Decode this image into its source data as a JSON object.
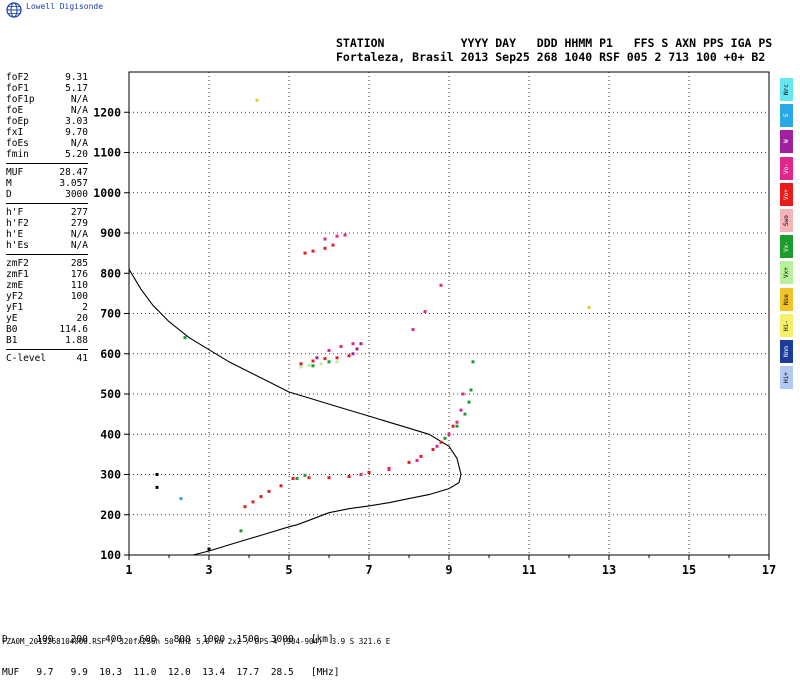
{
  "brand": "Lowell Digisonde",
  "header": {
    "line1": "STATION           YYYY DAY   DDD HHMM P1   FFS S AXN PPS IGA PS",
    "line2": "Fortaleza, Brasil 2013 Sep25 268 1040 RSF 005 2 713 100 +0+ B2"
  },
  "parameters": [
    [
      {
        "name": "foF2",
        "value": "9.31"
      },
      {
        "name": "foF1",
        "value": "5.17"
      },
      {
        "name": "foF1p",
        "value": "N/A"
      },
      {
        "name": "foE",
        "value": "N/A"
      },
      {
        "name": "foEp",
        "value": "3.03"
      },
      {
        "name": "fxI",
        "value": "9.70"
      },
      {
        "name": "foEs",
        "value": "N/A"
      },
      {
        "name": "fmin",
        "value": "5.20"
      }
    ],
    [
      {
        "name": "MUF",
        "value": "28.47"
      },
      {
        "name": "M",
        "value": "3.057"
      },
      {
        "name": "D",
        "value": "3000"
      }
    ],
    [
      {
        "name": "h'F",
        "value": "277"
      },
      {
        "name": "h'F2",
        "value": "279"
      },
      {
        "name": "h'E",
        "value": "N/A"
      },
      {
        "name": "h'Es",
        "value": "N/A"
      }
    ],
    [
      {
        "name": "zmF2",
        "value": "285"
      },
      {
        "name": "zmF1",
        "value": "176"
      },
      {
        "name": "zmE",
        "value": "110"
      },
      {
        "name": "yF2",
        "value": "100"
      },
      {
        "name": "yF1",
        "value": "2"
      },
      {
        "name": "yE",
        "value": "20"
      },
      {
        "name": "B0",
        "value": "114.6"
      },
      {
        "name": "B1",
        "value": "1.88"
      }
    ],
    [
      {
        "name": "C-level",
        "value": "41"
      }
    ]
  ],
  "color_scale": [
    {
      "label": "Nrc",
      "color": "#66e6ee"
    },
    {
      "label": "E",
      "color": "#2aa8e6"
    },
    {
      "label": "W",
      "color": "#a020a0"
    },
    {
      "label": "Vo-",
      "color": "#e0288c"
    },
    {
      "label": "Vo+",
      "color": "#e81c1c"
    },
    {
      "label": "Swo",
      "color": "#f4b4b8"
    },
    {
      "label": "Vx-",
      "color": "#1c9c2c"
    },
    {
      "label": "Vx+",
      "color": "#b8f09c"
    },
    {
      "label": "Nse",
      "color": "#f0c428"
    },
    {
      "label": "Hi-",
      "color": "#f4f06c"
    },
    {
      "label": "Nnm",
      "color": "#1c3c9c"
    },
    {
      "label": "Hi+",
      "color": "#b4c8f4"
    }
  ],
  "d_table": {
    "line1": "D     100   200   400   600   800  1000  1500  3000   [km]",
    "line2": "MUF   9.7   9.9  10.3  11.0  12.0  13.4  17.7  28.5   [MHz]"
  },
  "footer": "FZA0M_2013268104000.RSF / 320fx256h 50 kHz 5.0 km 2x2 / DPS-4 (904-904)  3.9 S 321.6 E",
  "chart_data": {
    "type": "scatter",
    "title": "",
    "xlabel": "",
    "ylabel": "",
    "xlim": [
      1,
      17
    ],
    "ylim": [
      100,
      1300
    ],
    "x_ticks": [
      "1",
      "3",
      "5",
      "7",
      "9",
      "11",
      "13",
      "15",
      "17"
    ],
    "y_ticks": [
      "100",
      "200",
      "300",
      "400",
      "500",
      "600",
      "700",
      "800",
      "900",
      "1000",
      "1100",
      "1200"
    ],
    "grid": true,
    "profile_curve": {
      "x": [
        1.0,
        1.3,
        1.6,
        2.0,
        2.5,
        3.0,
        3.5,
        4.0,
        4.5,
        5.0,
        5.5,
        6.0,
        6.5,
        7.0,
        7.5,
        8.0,
        8.5,
        9.0,
        9.2,
        9.3,
        9.25,
        9.0,
        8.5,
        8.0,
        7.5,
        7.0,
        6.5,
        6.0,
        5.6,
        5.2,
        5.0,
        4.5,
        4.0,
        3.5,
        3.0,
        2.6
      ],
      "y": [
        810,
        760,
        720,
        680,
        640,
        610,
        580,
        555,
        530,
        505,
        490,
        475,
        460,
        445,
        430,
        415,
        400,
        370,
        340,
        300,
        280,
        265,
        250,
        240,
        230,
        222,
        215,
        205,
        190,
        175,
        170,
        155,
        140,
        125,
        110,
        100
      ]
    },
    "series": [
      {
        "name": "Vo+",
        "color": "#e81c1c",
        "x": [
          3.9,
          4.1,
          4.3,
          4.5,
          4.8,
          5.1,
          5.5,
          6.0,
          6.5,
          7.0,
          7.5,
          8.0,
          8.3,
          8.6,
          8.8,
          9.0,
          9.1,
          5.3,
          5.6,
          5.9,
          6.2,
          6.5,
          5.4,
          5.6,
          5.9,
          6.1
        ],
        "y": [
          220,
          232,
          245,
          258,
          272,
          290,
          292,
          292,
          295,
          305,
          315,
          330,
          345,
          362,
          380,
          400,
          420,
          575,
          582,
          588,
          590,
          595,
          850,
          855,
          862,
          870
        ]
      },
      {
        "name": "Vo-",
        "color": "#e0288c",
        "x": [
          6.8,
          7.5,
          8.2,
          8.7,
          9.0,
          9.2,
          9.3,
          9.35,
          6.0,
          6.3,
          6.6,
          8.8,
          5.9,
          6.2,
          6.4,
          8.4,
          8.1
        ],
        "y": [
          300,
          312,
          335,
          370,
          400,
          430,
          460,
          500,
          608,
          618,
          625,
          770,
          885,
          892,
          895,
          705,
          660
        ]
      },
      {
        "name": "Vx-",
        "color": "#1c9c2c",
        "x": [
          5.2,
          5.4,
          8.9,
          9.2,
          9.4,
          9.5,
          9.55,
          9.6,
          3.8,
          5.6,
          6.0,
          2.4
        ],
        "y": [
          290,
          298,
          390,
          420,
          450,
          480,
          510,
          580,
          160,
          570,
          580,
          640
        ]
      },
      {
        "name": "Vx+",
        "color": "#b8f09c",
        "x": [
          5.3,
          5.5,
          5.8,
          6.2
        ],
        "y": [
          567,
          571,
          575,
          580
        ]
      },
      {
        "name": "W",
        "color": "#a020a0",
        "x": [
          6.6,
          6.7,
          6.8,
          5.7
        ],
        "y": [
          600,
          612,
          625,
          590
        ]
      },
      {
        "name": "Nse",
        "color": "#f0c428",
        "x": [
          4.2,
          12.5
        ],
        "y": [
          1230,
          715
        ]
      },
      {
        "name": "E",
        "color": "#2aa8e6",
        "x": [
          2.3
        ],
        "y": [
          240
        ]
      },
      {
        "name": "Nnm",
        "color": "#000000",
        "x": [
          1.7,
          1.7,
          3.0
        ],
        "y": [
          300,
          268,
          115
        ]
      }
    ]
  }
}
